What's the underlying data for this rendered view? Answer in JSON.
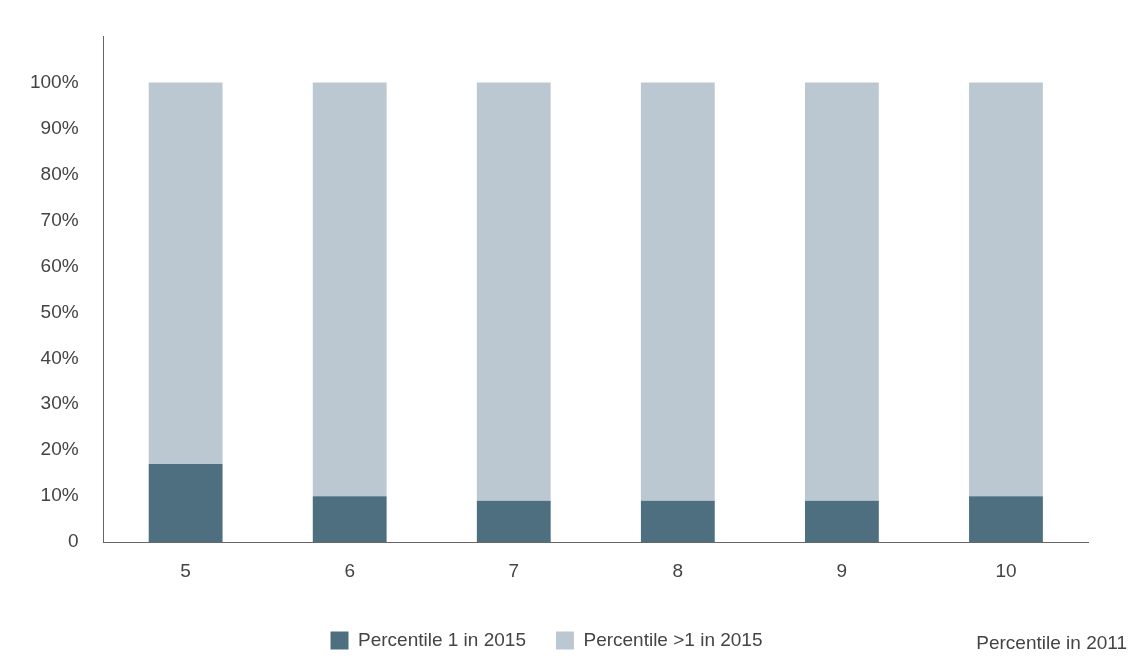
{
  "chart_data": {
    "type": "bar",
    "stacked": true,
    "categories": [
      "5",
      "6",
      "7",
      "8",
      "9",
      "10"
    ],
    "series": [
      {
        "name": "Percentile 1 in 2015",
        "color": "#4d6f80",
        "values": [
          17,
          10,
          9,
          9,
          9,
          10
        ]
      },
      {
        "name": "Percentile >1 in 2015",
        "color": "#bbc8d1",
        "values": [
          83,
          90,
          91,
          91,
          91,
          90
        ]
      }
    ],
    "xlabel": "Percentile in 2011",
    "ylim": [
      0,
      110
    ],
    "yticks": [
      {
        "value": 0,
        "label": "0"
      },
      {
        "value": 10,
        "label": "10%"
      },
      {
        "value": 20,
        "label": "20%"
      },
      {
        "value": 30,
        "label": "30%"
      },
      {
        "value": 40,
        "label": "40%"
      },
      {
        "value": 50,
        "label": "50%"
      },
      {
        "value": 60,
        "label": "60%"
      },
      {
        "value": 70,
        "label": "70%"
      },
      {
        "value": 80,
        "label": "80%"
      },
      {
        "value": 90,
        "label": "90%"
      },
      {
        "value": 100,
        "label": "100%"
      }
    ],
    "grid": false,
    "legend": "bottom"
  }
}
